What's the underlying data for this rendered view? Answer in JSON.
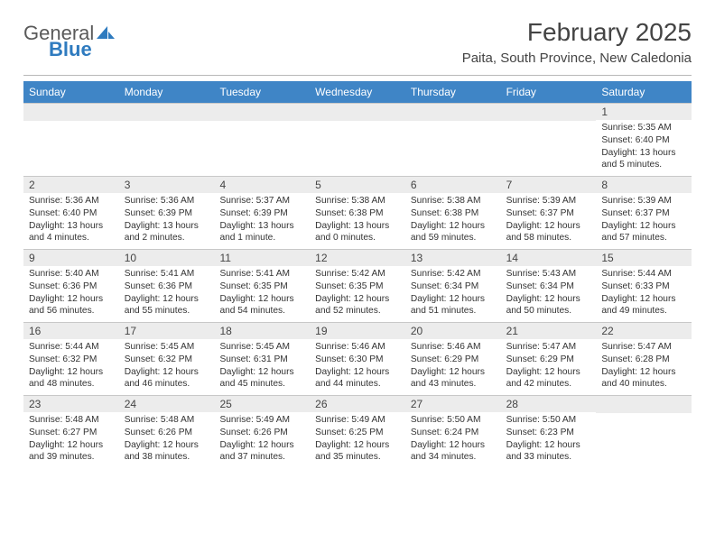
{
  "brand": {
    "word1": "General",
    "word2": "Blue"
  },
  "title": "February 2025",
  "location": "Paita, South Province, New Caledonia",
  "colors": {
    "header_bg": "#3f85c6",
    "header_text": "#ffffff",
    "daynum_bg": "#ececec",
    "divider": "#b8b8b8",
    "text": "#333333",
    "brand_gray": "#5a5a5a",
    "brand_blue": "#2f7bbf"
  },
  "weekdays": [
    "Sunday",
    "Monday",
    "Tuesday",
    "Wednesday",
    "Thursday",
    "Friday",
    "Saturday"
  ],
  "weeks": [
    [
      {
        "n": "",
        "sr": "",
        "ss": "",
        "dl": ""
      },
      {
        "n": "",
        "sr": "",
        "ss": "",
        "dl": ""
      },
      {
        "n": "",
        "sr": "",
        "ss": "",
        "dl": ""
      },
      {
        "n": "",
        "sr": "",
        "ss": "",
        "dl": ""
      },
      {
        "n": "",
        "sr": "",
        "ss": "",
        "dl": ""
      },
      {
        "n": "",
        "sr": "",
        "ss": "",
        "dl": ""
      },
      {
        "n": "1",
        "sr": "Sunrise: 5:35 AM",
        "ss": "Sunset: 6:40 PM",
        "dl": "Daylight: 13 hours and 5 minutes."
      }
    ],
    [
      {
        "n": "2",
        "sr": "Sunrise: 5:36 AM",
        "ss": "Sunset: 6:40 PM",
        "dl": "Daylight: 13 hours and 4 minutes."
      },
      {
        "n": "3",
        "sr": "Sunrise: 5:36 AM",
        "ss": "Sunset: 6:39 PM",
        "dl": "Daylight: 13 hours and 2 minutes."
      },
      {
        "n": "4",
        "sr": "Sunrise: 5:37 AM",
        "ss": "Sunset: 6:39 PM",
        "dl": "Daylight: 13 hours and 1 minute."
      },
      {
        "n": "5",
        "sr": "Sunrise: 5:38 AM",
        "ss": "Sunset: 6:38 PM",
        "dl": "Daylight: 13 hours and 0 minutes."
      },
      {
        "n": "6",
        "sr": "Sunrise: 5:38 AM",
        "ss": "Sunset: 6:38 PM",
        "dl": "Daylight: 12 hours and 59 minutes."
      },
      {
        "n": "7",
        "sr": "Sunrise: 5:39 AM",
        "ss": "Sunset: 6:37 PM",
        "dl": "Daylight: 12 hours and 58 minutes."
      },
      {
        "n": "8",
        "sr": "Sunrise: 5:39 AM",
        "ss": "Sunset: 6:37 PM",
        "dl": "Daylight: 12 hours and 57 minutes."
      }
    ],
    [
      {
        "n": "9",
        "sr": "Sunrise: 5:40 AM",
        "ss": "Sunset: 6:36 PM",
        "dl": "Daylight: 12 hours and 56 minutes."
      },
      {
        "n": "10",
        "sr": "Sunrise: 5:41 AM",
        "ss": "Sunset: 6:36 PM",
        "dl": "Daylight: 12 hours and 55 minutes."
      },
      {
        "n": "11",
        "sr": "Sunrise: 5:41 AM",
        "ss": "Sunset: 6:35 PM",
        "dl": "Daylight: 12 hours and 54 minutes."
      },
      {
        "n": "12",
        "sr": "Sunrise: 5:42 AM",
        "ss": "Sunset: 6:35 PM",
        "dl": "Daylight: 12 hours and 52 minutes."
      },
      {
        "n": "13",
        "sr": "Sunrise: 5:42 AM",
        "ss": "Sunset: 6:34 PM",
        "dl": "Daylight: 12 hours and 51 minutes."
      },
      {
        "n": "14",
        "sr": "Sunrise: 5:43 AM",
        "ss": "Sunset: 6:34 PM",
        "dl": "Daylight: 12 hours and 50 minutes."
      },
      {
        "n": "15",
        "sr": "Sunrise: 5:44 AM",
        "ss": "Sunset: 6:33 PM",
        "dl": "Daylight: 12 hours and 49 minutes."
      }
    ],
    [
      {
        "n": "16",
        "sr": "Sunrise: 5:44 AM",
        "ss": "Sunset: 6:32 PM",
        "dl": "Daylight: 12 hours and 48 minutes."
      },
      {
        "n": "17",
        "sr": "Sunrise: 5:45 AM",
        "ss": "Sunset: 6:32 PM",
        "dl": "Daylight: 12 hours and 46 minutes."
      },
      {
        "n": "18",
        "sr": "Sunrise: 5:45 AM",
        "ss": "Sunset: 6:31 PM",
        "dl": "Daylight: 12 hours and 45 minutes."
      },
      {
        "n": "19",
        "sr": "Sunrise: 5:46 AM",
        "ss": "Sunset: 6:30 PM",
        "dl": "Daylight: 12 hours and 44 minutes."
      },
      {
        "n": "20",
        "sr": "Sunrise: 5:46 AM",
        "ss": "Sunset: 6:29 PM",
        "dl": "Daylight: 12 hours and 43 minutes."
      },
      {
        "n": "21",
        "sr": "Sunrise: 5:47 AM",
        "ss": "Sunset: 6:29 PM",
        "dl": "Daylight: 12 hours and 42 minutes."
      },
      {
        "n": "22",
        "sr": "Sunrise: 5:47 AM",
        "ss": "Sunset: 6:28 PM",
        "dl": "Daylight: 12 hours and 40 minutes."
      }
    ],
    [
      {
        "n": "23",
        "sr": "Sunrise: 5:48 AM",
        "ss": "Sunset: 6:27 PM",
        "dl": "Daylight: 12 hours and 39 minutes."
      },
      {
        "n": "24",
        "sr": "Sunrise: 5:48 AM",
        "ss": "Sunset: 6:26 PM",
        "dl": "Daylight: 12 hours and 38 minutes."
      },
      {
        "n": "25",
        "sr": "Sunrise: 5:49 AM",
        "ss": "Sunset: 6:26 PM",
        "dl": "Daylight: 12 hours and 37 minutes."
      },
      {
        "n": "26",
        "sr": "Sunrise: 5:49 AM",
        "ss": "Sunset: 6:25 PM",
        "dl": "Daylight: 12 hours and 35 minutes."
      },
      {
        "n": "27",
        "sr": "Sunrise: 5:50 AM",
        "ss": "Sunset: 6:24 PM",
        "dl": "Daylight: 12 hours and 34 minutes."
      },
      {
        "n": "28",
        "sr": "Sunrise: 5:50 AM",
        "ss": "Sunset: 6:23 PM",
        "dl": "Daylight: 12 hours and 33 minutes."
      },
      {
        "n": "",
        "sr": "",
        "ss": "",
        "dl": ""
      }
    ]
  ]
}
